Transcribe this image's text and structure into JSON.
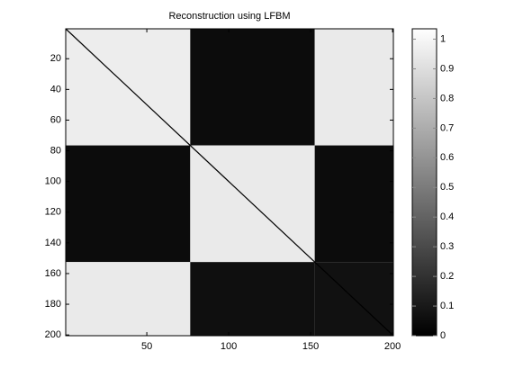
{
  "chart_data": {
    "type": "heatmap",
    "title": "Reconstruction using LFBM",
    "edges": [
      0.5,
      76.5,
      152.5,
      200.5
    ],
    "values": [
      [
        0.96,
        0.05,
        0.95
      ],
      [
        0.05,
        0.95,
        0.05
      ],
      [
        0.95,
        0.06,
        0.07
      ]
    ],
    "diagonal": 0,
    "xlim": [
      0.5,
      200.5
    ],
    "xticks": [
      50,
      100,
      150,
      200
    ],
    "ylim": [
      0.5,
      200.5
    ],
    "yticks": [
      20,
      40,
      60,
      80,
      100,
      120,
      140,
      160,
      180,
      200
    ],
    "y_reversed": true,
    "clim": [
      0,
      1.035
    ],
    "cticks": [
      0,
      0.1,
      0.2,
      0.3,
      0.4,
      0.5,
      0.6,
      0.7,
      0.8,
      0.9,
      1
    ],
    "colormap": "gray",
    "colorbar": true
  }
}
